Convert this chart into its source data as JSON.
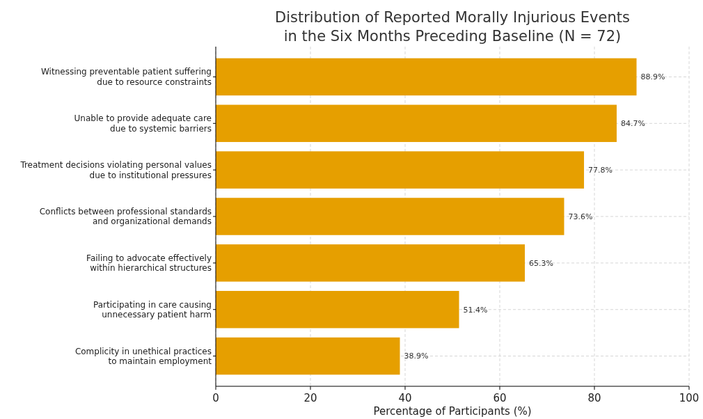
{
  "chart_data": {
    "type": "bar",
    "orientation": "horizontal",
    "title": "Distribution of Reported Morally Injurious Events\nin the Six Months Preceding Baseline (N = 72)",
    "xlabel": "Percentage of Participants (%)",
    "categories": [
      "Witnessing preventable patient suffering\ndue to resource constraints",
      "Unable to provide adequate care\ndue to systemic barriers",
      "Treatment decisions violating personal values\ndue to institutional pressures",
      "Conflicts between professional standards\nand organizational demands",
      "Failing to advocate effectively\nwithin hierarchical structures",
      "Participating in care causing\nunnecessary patient harm",
      "Complicity in unethical practices\nto maintain employment"
    ],
    "values": [
      88.9,
      84.7,
      77.8,
      73.6,
      65.3,
      51.4,
      38.9
    ],
    "value_labels": [
      "88.9%",
      "84.7%",
      "77.8%",
      "73.6%",
      "65.3%",
      "51.4%",
      "38.9%"
    ],
    "color": "#e69f00",
    "xlim": [
      0,
      100
    ],
    "xticks": [
      0,
      20,
      40,
      60,
      80,
      100
    ],
    "grid": true
  }
}
